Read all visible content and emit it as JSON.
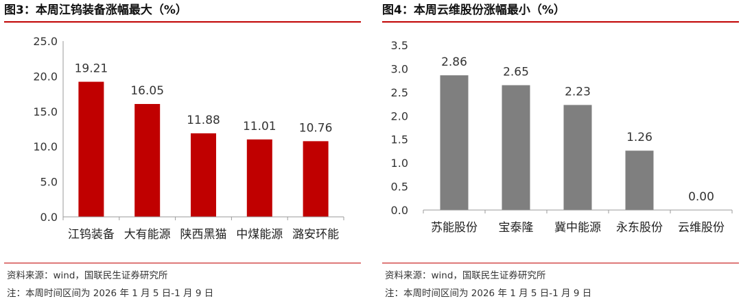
{
  "figures": [
    {
      "title": "图3：本周江钨装备涨幅最大（%）",
      "source": "资料来源：wind，国联民生证券研究所",
      "note": "注：本周时间区间为 2026 年 1 月 5 日-1 月 9 日",
      "color": "#c00000"
    },
    {
      "title": "图4：本周云维股份涨幅最小（%）",
      "source": "资料来源：wind，国联民生证券研究所",
      "note": "注：本周时间区间为 2026 年 1 月 5 日-1 月 9 日",
      "color": "#7f7f7f"
    }
  ],
  "chart_data": [
    {
      "type": "bar",
      "title": "图3：本周江钨装备涨幅最大（%）",
      "categories": [
        "江钨装备",
        "大有能源",
        "陕西黑猫",
        "中煤能源",
        "潞安环能"
      ],
      "values": [
        19.21,
        16.05,
        11.88,
        11.01,
        10.76
      ],
      "value_labels": [
        "19.21",
        "16.05",
        "11.88",
        "11.01",
        "10.76"
      ],
      "yticks": [
        "0.0",
        "5.0",
        "10.0",
        "15.0",
        "20.0",
        "25.0"
      ],
      "ylim": [
        0,
        25
      ],
      "xlabel": "",
      "ylabel": "",
      "grid": false,
      "bar_color": "#c00000"
    },
    {
      "type": "bar",
      "title": "图4：本周云维股份涨幅最小（%）",
      "categories": [
        "苏能股份",
        "宝泰隆",
        "冀中能源",
        "永东股份",
        "云维股份"
      ],
      "values": [
        2.86,
        2.65,
        2.23,
        1.26,
        0.0
      ],
      "value_labels": [
        "2.86",
        "2.65",
        "2.23",
        "1.26",
        "0.00"
      ],
      "yticks": [
        "0.0",
        "0.5",
        "1.0",
        "1.5",
        "2.0",
        "2.5",
        "3.0",
        "3.5"
      ],
      "ylim": [
        0,
        3.5
      ],
      "xlabel": "",
      "ylabel": "",
      "grid": false,
      "bar_color": "#7f7f7f"
    }
  ]
}
